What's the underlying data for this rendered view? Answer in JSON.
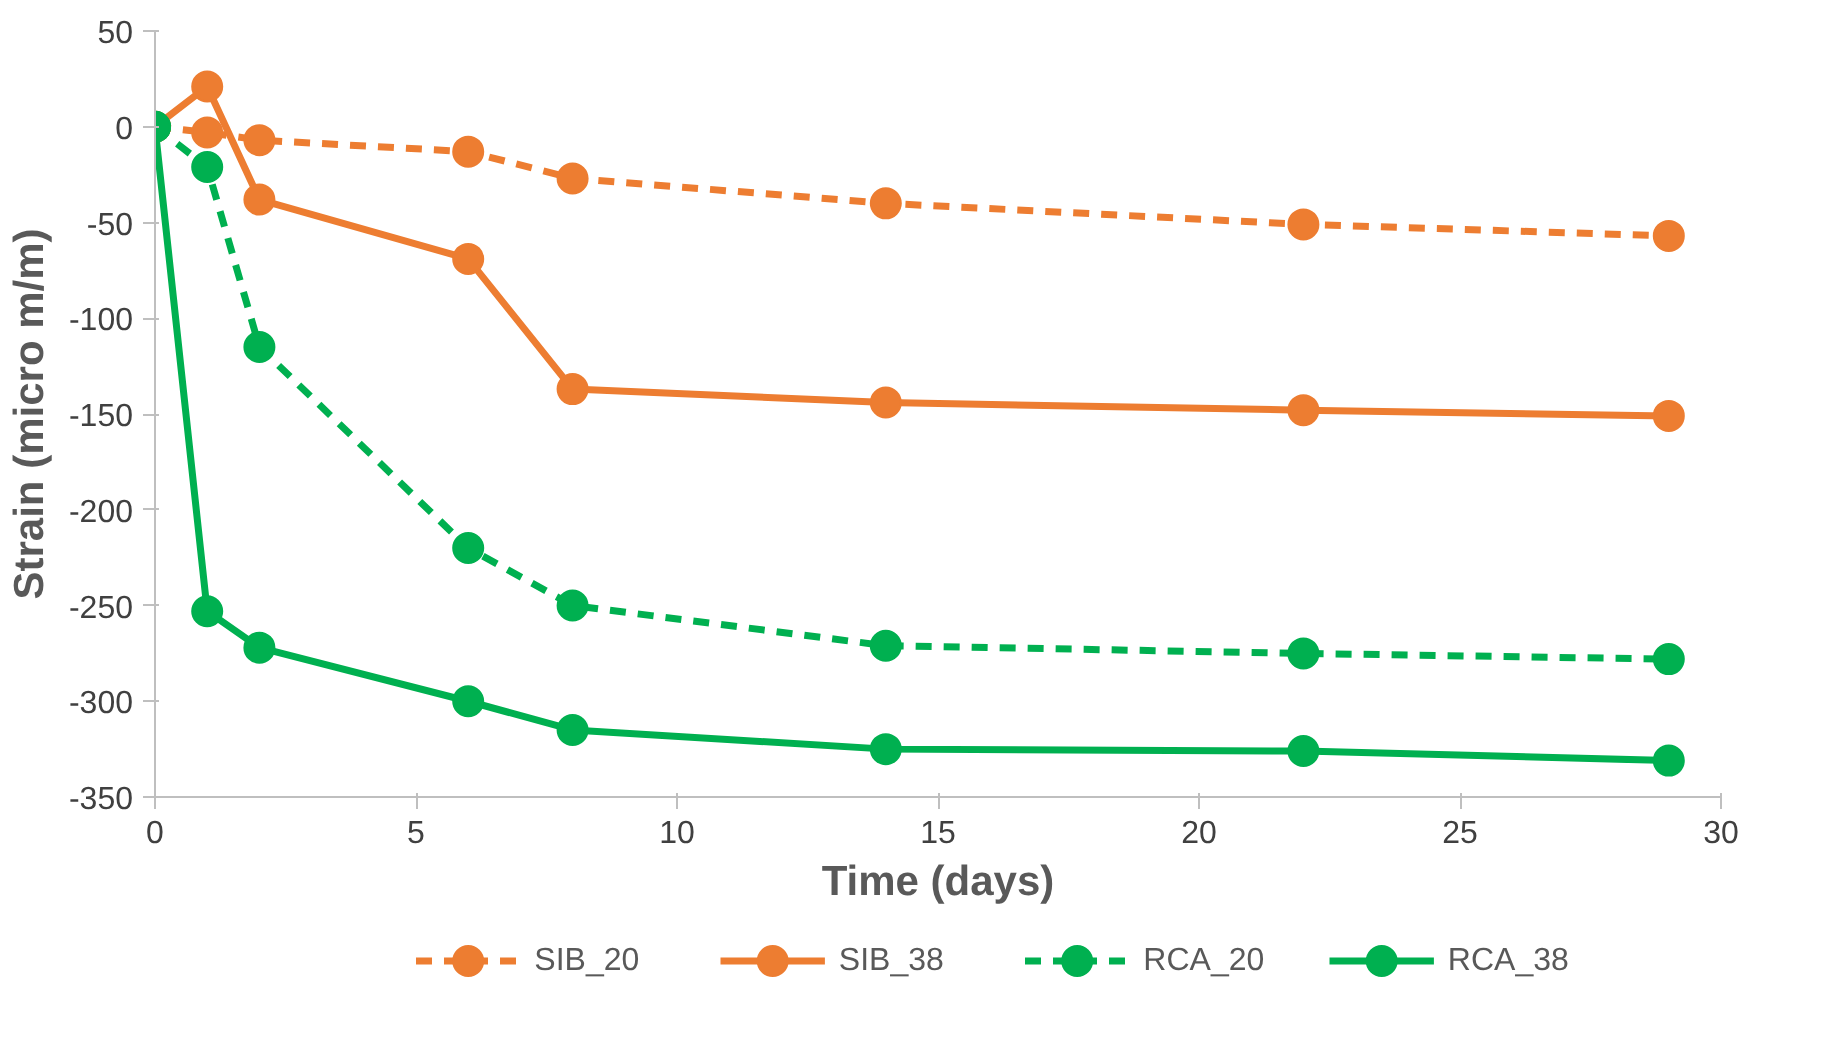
{
  "chart_data": {
    "type": "line",
    "xlabel": "Time (days)",
    "ylabel": "Strain (micro m/m)",
    "x": [
      0,
      1,
      2,
      6,
      8,
      14,
      22,
      29
    ],
    "series": [
      {
        "name": "SIB_20",
        "color": "#ed7d31",
        "line_style": "dashed",
        "values": [
          0,
          -3,
          -7,
          -13,
          -27,
          -40,
          -51,
          -57
        ]
      },
      {
        "name": "SIB_38",
        "color": "#ed7d31",
        "line_style": "solid",
        "values": [
          0,
          21,
          -38,
          -69,
          -137,
          -144,
          -148,
          -151
        ]
      },
      {
        "name": "RCA_20",
        "color": "#00b050",
        "line_style": "dashed",
        "values": [
          0,
          -21,
          -115,
          -220,
          -250,
          -271,
          -275,
          -278
        ]
      },
      {
        "name": "RCA_38",
        "color": "#00b050",
        "line_style": "solid",
        "values": [
          0,
          -253,
          -272,
          -300,
          -315,
          -325,
          -326,
          -331
        ]
      }
    ],
    "marker": "circle",
    "xlim": [
      0,
      30
    ],
    "xticks": [
      0,
      5,
      10,
      15,
      20,
      25,
      30
    ],
    "ylim": [
      -350,
      50
    ],
    "yticks": [
      50,
      0,
      -50,
      -100,
      -150,
      -200,
      -250,
      -300,
      -350
    ],
    "grid": false,
    "legend": "bottom"
  }
}
